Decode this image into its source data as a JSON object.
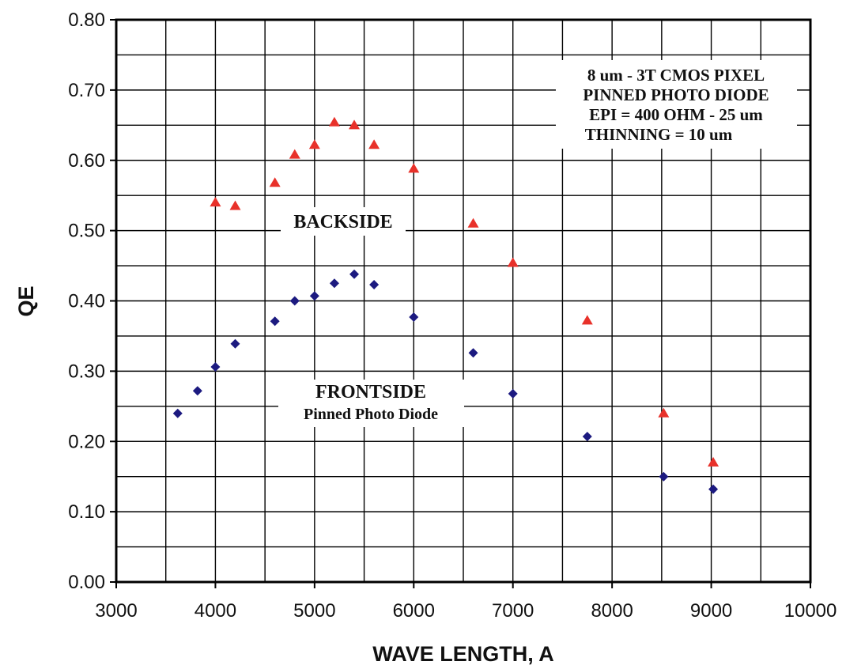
{
  "chart_data": {
    "type": "scatter",
    "title": "",
    "xlabel": "WAVE LENGTH,  A",
    "ylabel": "QE",
    "xlim": [
      3000,
      10000
    ],
    "ylim": [
      0.0,
      0.8
    ],
    "x_ticks": [
      3000,
      4000,
      5000,
      6000,
      7000,
      8000,
      9000,
      10000
    ],
    "y_ticks": [
      "0.00",
      "0.10",
      "0.20",
      "0.30",
      "0.40",
      "0.50",
      "0.60",
      "0.70",
      "0.80"
    ],
    "grid": true,
    "series": [
      {
        "marker": "triangle",
        "color": "#e8312a",
        "points": [
          [
            4000,
            0.54
          ],
          [
            4200,
            0.535
          ],
          [
            4600,
            0.568
          ],
          [
            4800,
            0.608
          ],
          [
            5000,
            0.622
          ],
          [
            5200,
            0.654
          ],
          [
            5400,
            0.65
          ],
          [
            5600,
            0.622
          ],
          [
            6000,
            0.588
          ],
          [
            6600,
            0.51
          ],
          [
            7000,
            0.454
          ],
          [
            7750,
            0.372
          ],
          [
            8520,
            0.24
          ],
          [
            9020,
            0.17
          ]
        ]
      },
      {
        "marker": "diamond",
        "color": "#1c1a80",
        "points": [
          [
            3620,
            0.24
          ],
          [
            3820,
            0.272
          ],
          [
            4000,
            0.306
          ],
          [
            4200,
            0.339
          ],
          [
            4600,
            0.371
          ],
          [
            4800,
            0.4
          ],
          [
            5000,
            0.407
          ],
          [
            5200,
            0.425
          ],
          [
            5400,
            0.438
          ],
          [
            5600,
            0.423
          ],
          [
            6000,
            0.377
          ],
          [
            6600,
            0.326
          ],
          [
            7000,
            0.268
          ],
          [
            7750,
            0.207
          ],
          [
            8520,
            0.15
          ],
          [
            9020,
            0.132
          ]
        ]
      }
    ],
    "annotations": {
      "info_box": [
        "8 um - 3T CMOS PIXEL",
        "PINNED PHOTO DIODE",
        "EPI =  400 OHM - 25 um",
        "THINNING = 10 um"
      ],
      "backside_label": "BACKSIDE",
      "frontside_label": "FRONTSIDE",
      "frontside_sublabel": "Pinned Photo Diode"
    }
  }
}
